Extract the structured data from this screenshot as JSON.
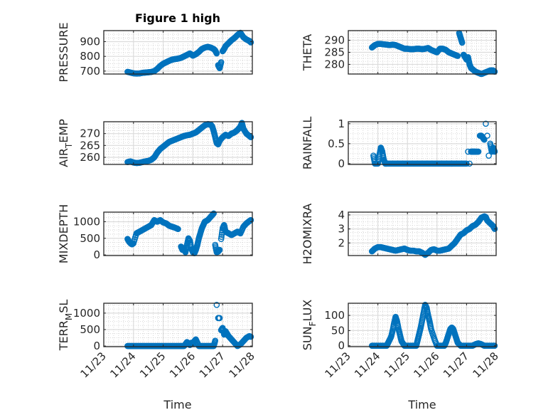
{
  "chart_data": {
    "type": "scatter",
    "title": "Figure 1 high",
    "marker": "open-circle",
    "marker_color": "#0072BD",
    "grid": true,
    "minor_grid": true,
    "x_type": "datetime",
    "xlabel": "Time",
    "xlim_days": [
      0,
      5
    ],
    "x_tick_labels": [
      "11/23",
      "11/24",
      "11/25",
      "11/26",
      "11/27",
      "11/28"
    ],
    "panels": [
      {
        "id": "pressure",
        "ylabel": "PRESSURE",
        "ylabel_sub": null,
        "ylim": [
          680,
          975
        ],
        "yticks": [
          700,
          800,
          900
        ],
        "ytick_labels": [
          "700",
          "800",
          "900"
        ],
        "x": [
          0.8,
          0.9,
          1.0,
          1.1,
          1.2,
          1.3,
          1.4,
          1.5,
          1.6,
          1.7,
          1.8,
          1.9,
          2.0,
          2.1,
          2.2,
          2.3,
          2.4,
          2.5,
          2.6,
          2.7,
          2.8,
          2.9,
          3.0,
          3.1,
          3.2,
          3.3,
          3.4,
          3.5,
          3.6,
          3.7,
          3.75,
          3.8,
          3.85,
          3.9,
          3.95,
          4.0,
          4.05,
          4.1,
          4.2,
          4.3,
          4.4,
          4.5,
          4.6,
          4.7,
          4.8,
          4.9,
          4.95
        ],
        "y": [
          695,
          690,
          685,
          683,
          684,
          688,
          690,
          692,
          694,
          700,
          715,
          735,
          750,
          760,
          770,
          778,
          782,
          785,
          790,
          800,
          810,
          820,
          805,
          815,
          830,
          850,
          860,
          865,
          860,
          850,
          840,
          820,
          740,
          720,
          760,
          835,
          850,
          870,
          890,
          910,
          925,
          945,
          960,
          930,
          915,
          905,
          895
        ]
      },
      {
        "id": "theta",
        "ylabel": "THETA",
        "ylabel_sub": null,
        "ylim": [
          276,
          294
        ],
        "yticks": [
          280,
          285,
          290
        ],
        "ytick_labels": [
          "280",
          "285",
          "290"
        ],
        "x": [
          0.8,
          0.85,
          0.9,
          1.0,
          1.1,
          1.2,
          1.3,
          1.4,
          1.5,
          1.6,
          1.7,
          1.8,
          1.9,
          2.0,
          2.1,
          2.2,
          2.3,
          2.4,
          2.5,
          2.6,
          2.7,
          2.8,
          2.9,
          3.0,
          3.1,
          3.2,
          3.3,
          3.4,
          3.5,
          3.6,
          3.7,
          3.75,
          3.8,
          3.85,
          3.9,
          3.95,
          4.0,
          4.05,
          4.1,
          4.15,
          4.2,
          4.3,
          4.4,
          4.5,
          4.6,
          4.7,
          4.8,
          4.9,
          4.95
        ],
        "y": [
          287,
          287.5,
          288,
          288.5,
          288.5,
          288.3,
          288.2,
          288,
          288.2,
          288,
          287.5,
          287,
          286.5,
          286.5,
          286.3,
          286.3,
          286.5,
          286.5,
          286.3,
          286.5,
          286.8,
          286,
          285.5,
          285,
          286.5,
          286.5,
          286,
          285,
          284.5,
          284,
          283.5,
          293,
          291,
          289,
          284,
          283,
          282,
          283,
          280,
          278.5,
          278,
          277,
          276.5,
          276,
          276.5,
          277,
          277.5,
          277.5,
          277
        ]
      },
      {
        "id": "air_temp",
        "ylabel": "AIR",
        "ylabel_sub": "T",
        "ylabel_rest": "EMP",
        "ylim": [
          257,
          275
        ],
        "yticks": [
          260,
          265,
          270
        ],
        "ytick_labels": [
          "260",
          "265",
          "270"
        ],
        "x": [
          0.8,
          0.9,
          1.0,
          1.1,
          1.2,
          1.3,
          1.4,
          1.5,
          1.6,
          1.7,
          1.8,
          1.9,
          2.0,
          2.1,
          2.2,
          2.3,
          2.4,
          2.5,
          2.6,
          2.7,
          2.8,
          2.9,
          3.0,
          3.1,
          3.2,
          3.3,
          3.4,
          3.5,
          3.6,
          3.65,
          3.7,
          3.75,
          3.8,
          3.85,
          3.9,
          4.0,
          4.1,
          4.2,
          4.3,
          4.4,
          4.5,
          4.6,
          4.65,
          4.7,
          4.8,
          4.9,
          4.95
        ],
        "y": [
          258,
          258.3,
          257.8,
          257.6,
          257.7,
          258,
          258.3,
          258.5,
          259,
          260,
          262,
          263.5,
          264.5,
          265.5,
          266.5,
          267,
          267.5,
          268,
          268.5,
          269,
          269.3,
          269.5,
          270,
          270.5,
          271.5,
          272.5,
          273.5,
          274,
          273.8,
          273,
          271,
          268.5,
          266,
          265.5,
          267,
          268.5,
          269.5,
          269,
          270,
          270.5,
          271.5,
          273,
          274.5,
          272,
          270,
          269,
          268.5
        ]
      },
      {
        "id": "rainfall",
        "ylabel": "RAINFALL",
        "ylabel_sub": null,
        "ylim": [
          -0.02,
          1.05
        ],
        "yticks": [
          0,
          0.5,
          1
        ],
        "ytick_labels": [
          "0",
          "0.5",
          "1"
        ],
        "x": [
          0.85,
          0.9,
          1.0,
          1.05,
          1.1,
          1.15,
          1.2,
          1.25,
          1.3,
          1.4,
          1.5,
          1.6,
          1.7,
          1.8,
          1.9,
          2.0,
          2.1,
          2.2,
          2.3,
          2.4,
          2.5,
          2.6,
          2.7,
          2.8,
          2.9,
          3.0,
          3.1,
          3.2,
          3.3,
          3.4,
          3.5,
          3.6,
          3.7,
          3.8,
          3.9,
          4.0,
          4.05,
          4.1,
          4.15,
          4.2,
          4.25,
          4.3,
          4.4,
          4.45,
          4.5,
          4.55,
          4.6,
          4.65,
          4.7,
          4.75,
          4.8,
          4.85,
          4.9,
          4.95
        ],
        "y": [
          0.2,
          0,
          0,
          0.2,
          0.4,
          0.3,
          0.1,
          0,
          0,
          0,
          0,
          0,
          0,
          0,
          0,
          0,
          0,
          0,
          0,
          0,
          0,
          0,
          0,
          0,
          0,
          0,
          0,
          0,
          0,
          0,
          0,
          0,
          0,
          0,
          0,
          0,
          0.3,
          0,
          0.3,
          0.3,
          0.3,
          0.3,
          0.3,
          0.7,
          0.7,
          0.65,
          0.6,
          1.0,
          0.7,
          0.2,
          0.5,
          0.3,
          0.4,
          0.3
        ]
      },
      {
        "id": "mixdepth",
        "ylabel": "MIXDEPTH",
        "ylabel_sub": null,
        "ylim": [
          -20,
          1290
        ],
        "yticks": [
          0,
          500,
          1000
        ],
        "ytick_labels": [
          "0",
          "500",
          "1000"
        ],
        "x": [
          0.8,
          0.85,
          0.9,
          0.95,
          1.0,
          1.1,
          1.2,
          1.3,
          1.4,
          1.5,
          1.6,
          1.7,
          1.8,
          1.9,
          2.0,
          2.1,
          2.2,
          2.3,
          2.4,
          2.5,
          2.6,
          2.65,
          2.7,
          2.75,
          2.8,
          2.85,
          2.9,
          2.95,
          3.0,
          3.05,
          3.1,
          3.15,
          3.2,
          3.25,
          3.3,
          3.35,
          3.4,
          3.5,
          3.6,
          3.7,
          3.75,
          3.8,
          3.85,
          3.9,
          3.95,
          4.0,
          4.05,
          4.1,
          4.2,
          4.3,
          4.4,
          4.5,
          4.6,
          4.7,
          4.8,
          4.9,
          4.95
        ],
        "y": [
          480,
          400,
          350,
          320,
          350,
          650,
          700,
          750,
          800,
          850,
          900,
          1050,
          1000,
          1050,
          980,
          950,
          880,
          850,
          820,
          780,
          250,
          150,
          200,
          80,
          300,
          500,
          420,
          180,
          80,
          50,
          150,
          300,
          500,
          650,
          800,
          900,
          1000,
          1050,
          1150,
          1250,
          300,
          80,
          100,
          150,
          480,
          800,
          900,
          700,
          650,
          600,
          650,
          700,
          650,
          850,
          950,
          1020,
          1050
        ]
      },
      {
        "id": "h2omixra",
        "ylabel": "H2OMIXRA",
        "ylabel_sub": null,
        "ylim": [
          1.1,
          4.2
        ],
        "yticks": [
          2,
          3,
          4
        ],
        "ytick_labels": [
          "2",
          "3",
          "4"
        ],
        "x": [
          0.8,
          0.9,
          1.0,
          1.1,
          1.2,
          1.3,
          1.4,
          1.5,
          1.6,
          1.7,
          1.8,
          1.9,
          2.0,
          2.1,
          2.2,
          2.3,
          2.4,
          2.5,
          2.6,
          2.7,
          2.8,
          2.9,
          3.0,
          3.1,
          3.2,
          3.3,
          3.4,
          3.5,
          3.6,
          3.7,
          3.8,
          3.9,
          4.0,
          4.1,
          4.2,
          4.3,
          4.4,
          4.5,
          4.6,
          4.65,
          4.7,
          4.8,
          4.9,
          4.95
        ],
        "y": [
          1.4,
          1.6,
          1.7,
          1.7,
          1.65,
          1.6,
          1.55,
          1.5,
          1.45,
          1.5,
          1.55,
          1.6,
          1.5,
          1.45,
          1.45,
          1.4,
          1.4,
          1.3,
          1.15,
          1.3,
          1.5,
          1.55,
          1.45,
          1.45,
          1.5,
          1.55,
          1.6,
          1.8,
          2.0,
          2.3,
          2.6,
          2.7,
          2.9,
          3.0,
          3.2,
          3.3,
          3.5,
          3.8,
          3.9,
          3.85,
          3.6,
          3.4,
          3.2,
          3.0
        ]
      },
      {
        "id": "terrmsl",
        "ylabel": "TERR",
        "ylabel_sub": "M",
        "ylabel_rest": "SL",
        "ylim": [
          -20,
          1300
        ],
        "yticks": [
          0,
          500,
          1000
        ],
        "ytick_labels": [
          "0",
          "500",
          "1000"
        ],
        "x": [
          0.8,
          0.9,
          1.0,
          1.1,
          1.2,
          1.3,
          1.4,
          1.5,
          1.6,
          1.7,
          1.8,
          1.9,
          2.0,
          2.1,
          2.2,
          2.3,
          2.4,
          2.5,
          2.6,
          2.7,
          2.75,
          2.8,
          2.85,
          2.9,
          2.95,
          3.0,
          3.05,
          3.1,
          3.2,
          3.3,
          3.4,
          3.5,
          3.6,
          3.7,
          3.75,
          3.8,
          3.85,
          3.9,
          3.95,
          4.0,
          4.05,
          4.1,
          4.2,
          4.3,
          4.4,
          4.5,
          4.6,
          4.7,
          4.8,
          4.9,
          4.95
        ],
        "y": [
          0,
          0,
          0,
          0,
          0,
          0,
          0,
          0,
          0,
          0,
          0,
          0,
          0,
          0,
          0,
          0,
          0,
          0,
          0,
          0,
          50,
          120,
          80,
          30,
          100,
          60,
          150,
          200,
          0,
          0,
          0,
          0,
          0,
          0,
          160,
          1250,
          850,
          850,
          480,
          550,
          350,
          450,
          300,
          200,
          100,
          0,
          50,
          150,
          250,
          300,
          280
        ]
      },
      {
        "id": "sunflux",
        "ylabel": "SUN",
        "ylabel_sub": "F",
        "ylabel_rest": "LUX",
        "ylim": [
          -3,
          140
        ],
        "yticks": [
          0,
          50,
          100
        ],
        "ytick_labels": [
          "0",
          "50",
          "100"
        ],
        "x": [
          0.8,
          0.9,
          1.0,
          1.1,
          1.2,
          1.3,
          1.35,
          1.4,
          1.45,
          1.5,
          1.55,
          1.6,
          1.65,
          1.7,
          1.75,
          1.8,
          1.9,
          2.0,
          2.1,
          2.2,
          2.3,
          2.35,
          2.4,
          2.45,
          2.5,
          2.55,
          2.6,
          2.65,
          2.7,
          2.75,
          2.8,
          2.9,
          3.0,
          3.1,
          3.2,
          3.25,
          3.3,
          3.35,
          3.4,
          3.45,
          3.5,
          3.55,
          3.6,
          3.65,
          3.7,
          3.8,
          3.9,
          4.0,
          4.1,
          4.2,
          4.3,
          4.4,
          4.5,
          4.6,
          4.7,
          4.8,
          4.9,
          4.95
        ],
        "y": [
          0,
          0,
          0,
          0,
          0,
          0,
          10,
          20,
          30,
          50,
          75,
          95,
          80,
          55,
          35,
          15,
          0,
          0,
          0,
          0,
          0,
          20,
          40,
          60,
          85,
          110,
          135,
          125,
          100,
          80,
          55,
          25,
          0,
          0,
          0,
          0,
          10,
          25,
          40,
          55,
          60,
          55,
          40,
          25,
          10,
          0,
          0,
          0,
          0,
          0,
          5,
          8,
          5,
          0,
          0,
          0,
          0,
          0
        ]
      }
    ]
  }
}
